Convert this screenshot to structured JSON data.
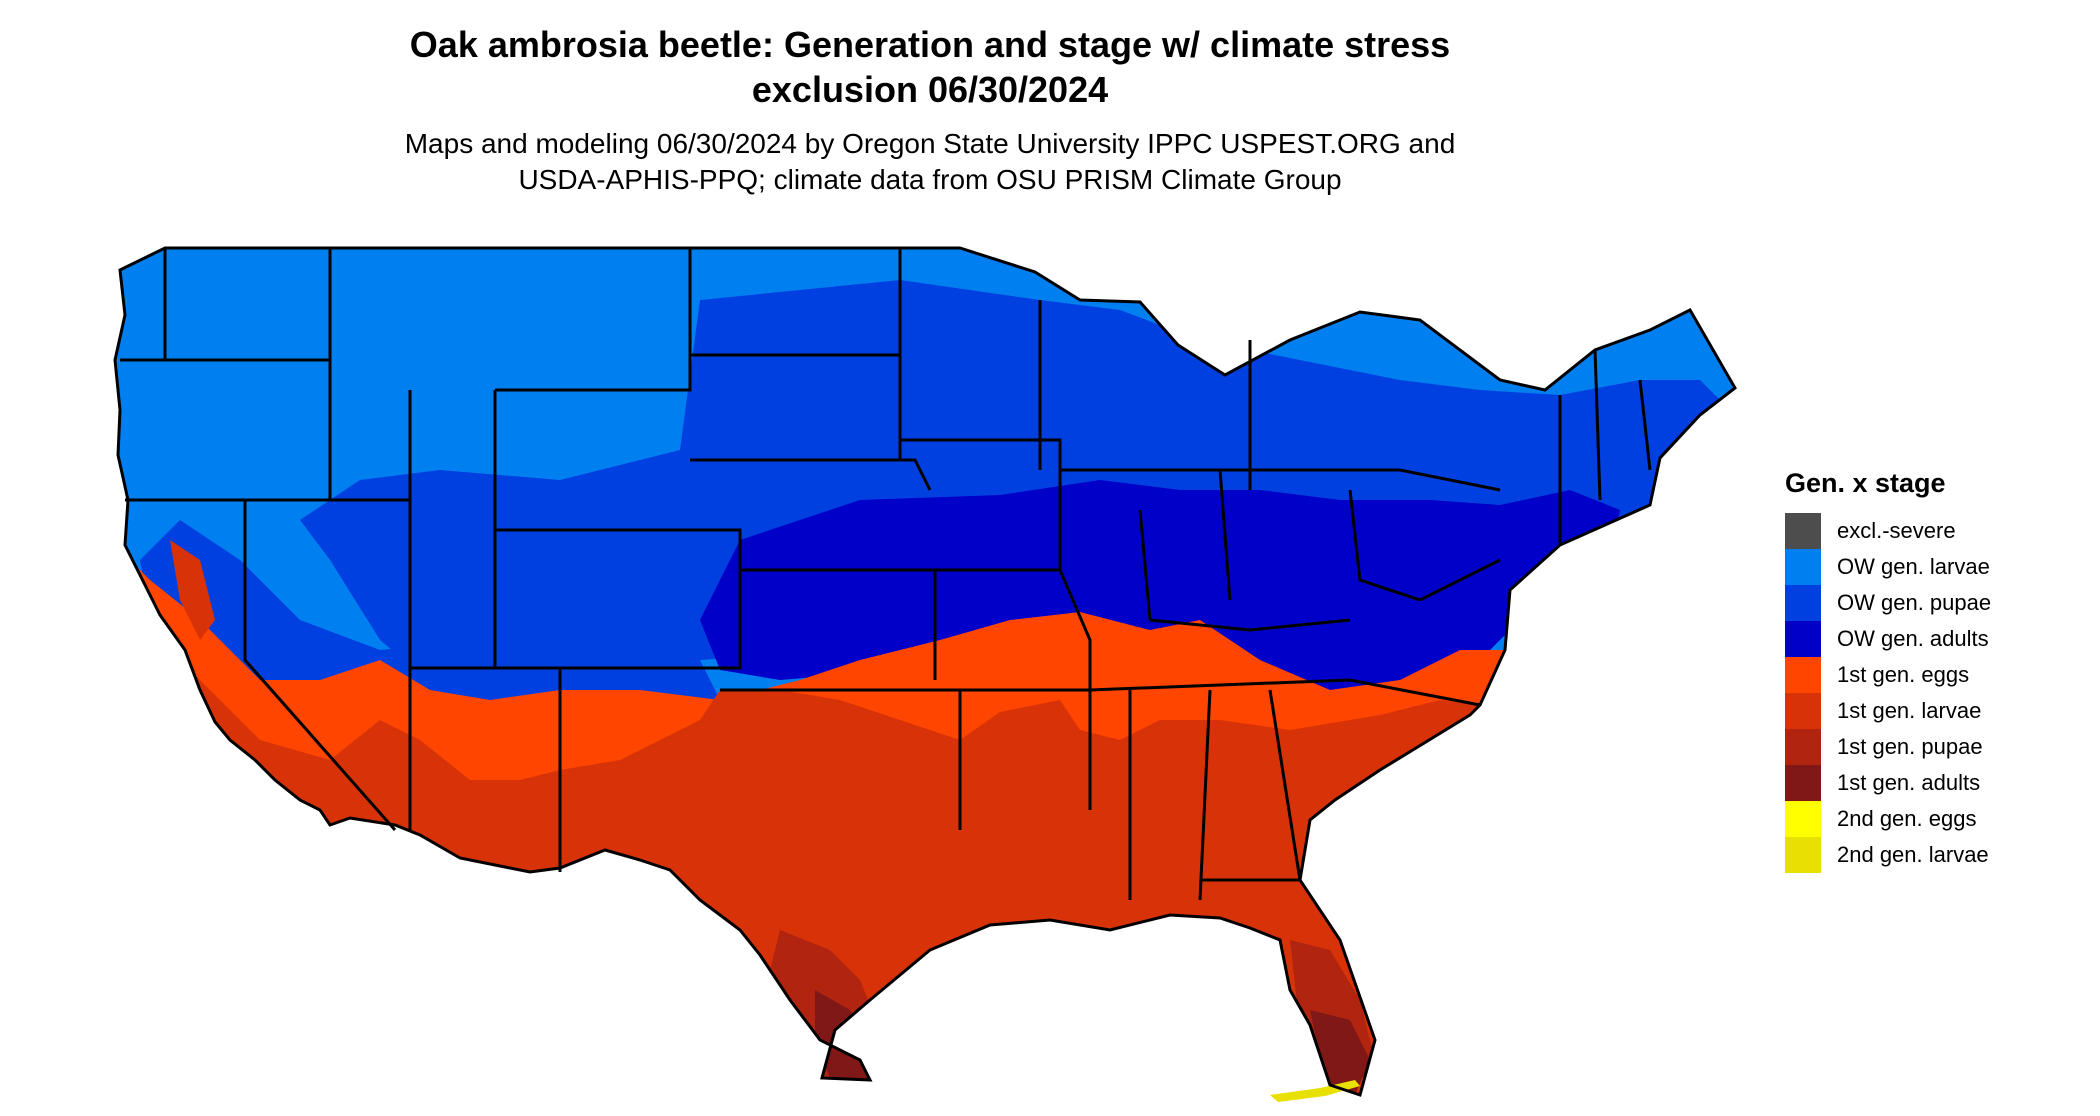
{
  "title": {
    "line1": "Oak ambrosia beetle: Generation and stage w/ climate stress",
    "line2": "exclusion 06/30/2024"
  },
  "subtitle": {
    "line1": "Maps and modeling 06/30/2024 by Oregon State University IPPC USPEST.ORG and",
    "line2": "USDA-APHIS-PPQ; climate data from OSU PRISM Climate Group"
  },
  "legend": {
    "title": "Gen. x stage",
    "items": [
      {
        "label": "excl.-severe",
        "color": "#4d4d4d"
      },
      {
        "label": "OW gen. larvae",
        "color": "#0080f0"
      },
      {
        "label": "OW gen. pupae",
        "color": "#0040e0"
      },
      {
        "label": "OW gen. adults",
        "color": "#0000c8"
      },
      {
        "label": "1st gen. eggs",
        "color": "#ff4500"
      },
      {
        "label": "1st gen. larvae",
        "color": "#d83308"
      },
      {
        "label": "1st gen. pupae",
        "color": "#b02410"
      },
      {
        "label": "1st gen. adults",
        "color": "#801818"
      },
      {
        "label": "2nd gen. eggs",
        "color": "#ffff00"
      },
      {
        "label": "2nd gen. larvae",
        "color": "#e8e000"
      }
    ]
  }
}
